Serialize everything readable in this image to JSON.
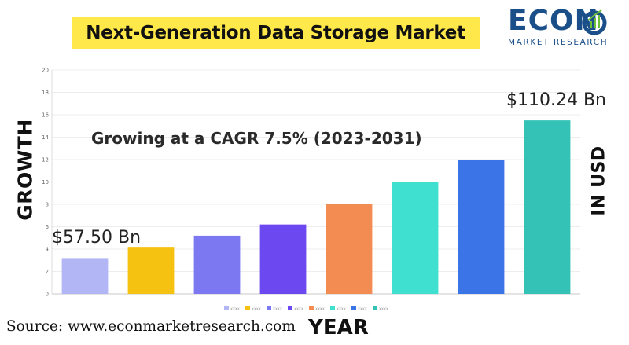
{
  "title": "Next-Generation Data Storage Market",
  "logo": {
    "word": "ECON",
    "sub": "MARKET RESEARCH"
  },
  "left_label": "GROWTH",
  "right_label": "IN USD",
  "x_label": "YEAR",
  "source": "Source: www.econmarketresearch.com",
  "colors": {
    "title_bg": "#ffe94a",
    "logo_blue": "#1b4f8a",
    "logo_green": "#6cbf3a"
  },
  "chart_data": {
    "type": "bar",
    "categories": [
      "xxxx",
      "xxxx",
      "xxxx",
      "xxxx",
      "xxxx",
      "xxxx",
      "xxxx",
      "xxxx"
    ],
    "values": [
      3.2,
      4.2,
      5.2,
      6.2,
      8.0,
      10.0,
      12.0,
      15.5
    ],
    "colors": [
      "#b3b6f5",
      "#f5c211",
      "#7b78f2",
      "#6b48f0",
      "#f28c52",
      "#3fe0cf",
      "#3b74e6",
      "#35c2b6"
    ],
    "ylim": [
      0,
      20
    ],
    "yticks": [
      0,
      2,
      4,
      6,
      8,
      10,
      12,
      14,
      16,
      18,
      20
    ],
    "grid": true,
    "legend_position": "bottom",
    "annotations": {
      "cagr": "Growing at a CAGR 7.5% (2023-2031)",
      "start_value": "$57.50 Bn",
      "end_value": "$110.24 Bn"
    }
  }
}
